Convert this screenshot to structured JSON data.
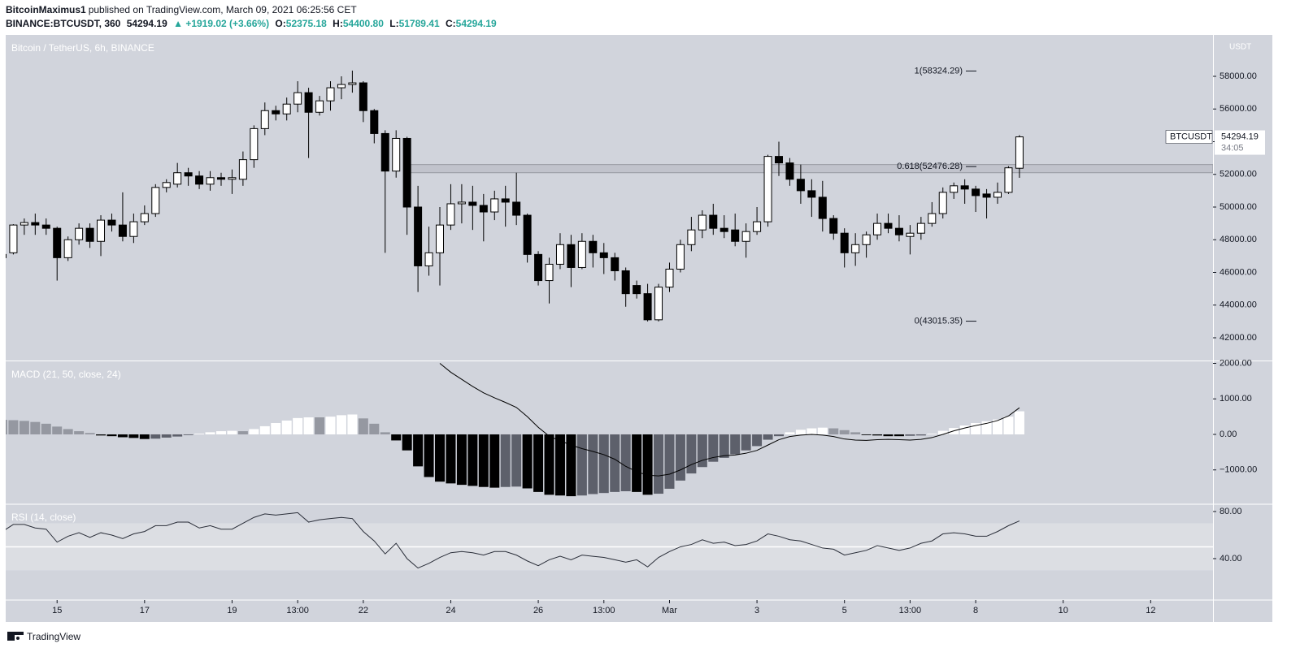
{
  "header": {
    "author": "BitcoinMaximus1",
    "published": "published on TradingView.com, March 09, 2021 06:25:56 CET",
    "symbol": "BINANCE:BTCUSDT, 360",
    "last": "54294.19",
    "change": "▲ +1919.02 (+3.66%)",
    "open_label": "O:",
    "open": "52375.18",
    "high_label": "H:",
    "high": "54400.80",
    "low_label": "L:",
    "low": "51789.41",
    "close_label": "C:",
    "close": "54294.19"
  },
  "footer": "TradingView",
  "chart_data": [
    {
      "type": "candlestick",
      "title": "Bitcoin / TetherUS, 6h, BINANCE",
      "name": "BTCUSDT",
      "axis_unit": "USDT",
      "up_color": "#ffffff",
      "down_color": "#000000",
      "xlim": [
        0.3,
        110.7
      ],
      "xticks": [
        {
          "value": 5,
          "label": "15"
        },
        {
          "value": 13,
          "label": "17"
        },
        {
          "value": 21,
          "label": "19"
        },
        {
          "value": 27,
          "label": "13:00"
        },
        {
          "value": 33,
          "label": "22"
        },
        {
          "value": 41,
          "label": "24"
        },
        {
          "value": 49,
          "label": "26"
        },
        {
          "value": 55,
          "label": "13:00"
        },
        {
          "value": 61,
          "label": "Mar"
        },
        {
          "value": 69,
          "label": "3"
        },
        {
          "value": 77,
          "label": "5"
        },
        {
          "value": 83,
          "label": "13:00"
        },
        {
          "value": 89,
          "label": "8"
        },
        {
          "value": 97,
          "label": "10"
        },
        {
          "value": 105,
          "label": "12"
        }
      ],
      "ylim": [
        40658,
        60534
      ],
      "yticks": [
        {
          "value": 42000,
          "label": "42000.00"
        },
        {
          "value": 44000,
          "label": "44000.00"
        },
        {
          "value": 46000,
          "label": "46000.00"
        },
        {
          "value": 48000,
          "label": "48000.00"
        },
        {
          "value": 50000,
          "label": "50000.00"
        },
        {
          "value": 52000,
          "label": "52000.00"
        },
        {
          "value": 54000,
          "label": "54000.00"
        },
        {
          "value": 56000,
          "label": "56000.00"
        },
        {
          "value": 58000,
          "label": "58000.00"
        }
      ],
      "open": [
        47100,
        47200,
        48900,
        49050,
        48900,
        48700,
        46900,
        48000,
        48700,
        47900,
        49200,
        48900,
        48200,
        49100,
        49600,
        51200,
        51400,
        52100,
        51900,
        51400,
        51800,
        51700,
        51700,
        52900,
        54800,
        55900,
        55700,
        56300,
        57000,
        55800,
        56500,
        57300,
        57500,
        57600,
        55900,
        54500,
        52200,
        54200,
        50000,
        46400,
        47200,
        48900,
        50200,
        50300,
        50100,
        49700,
        50500,
        50300,
        49500,
        47100,
        45500,
        46500,
        47700,
        46300,
        47900,
        47200,
        46900,
        46100,
        45200,
        44700,
        43100,
        45100,
        46200,
        47700,
        48600,
        49500,
        48700,
        48600,
        47900,
        48500,
        49100,
        53100,
        52700,
        51700,
        51000,
        50600,
        49300,
        48400,
        47200,
        47700,
        48300,
        49000,
        48700,
        48200,
        48400,
        49000,
        49600,
        50900,
        51300,
        51100,
        50800,
        50600,
        50900,
        52375.18
      ],
      "high": [
        47300,
        48950,
        49300,
        49600,
        49300,
        48800,
        48200,
        49000,
        49000,
        49500,
        49600,
        50900,
        49600,
        50100,
        51400,
        51700,
        52700,
        52400,
        52200,
        52200,
        52100,
        52300,
        53400,
        55000,
        56400,
        56200,
        56700,
        57700,
        57300,
        56800,
        57700,
        58000,
        58350,
        57700,
        56000,
        54700,
        54700,
        54300,
        51300,
        48800,
        50000,
        51400,
        51400,
        51300,
        50800,
        51000,
        51300,
        52100,
        49600,
        47300,
        46900,
        48400,
        48300,
        48400,
        48300,
        47800,
        47200,
        46300,
        45500,
        45300,
        45300,
        46600,
        48000,
        49400,
        49800,
        50200,
        49500,
        49600,
        49000,
        50000,
        53200,
        54000,
        53000,
        52600,
        51700,
        51600,
        49500,
        48700,
        48400,
        48500,
        49600,
        49600,
        49500,
        48900,
        49400,
        50300,
        51200,
        51500,
        51700,
        51300,
        51100,
        51500,
        52500,
        54400.8
      ],
      "low": [
        46800,
        47100,
        48300,
        48300,
        48300,
        45500,
        46700,
        47700,
        47500,
        47000,
        48500,
        47900,
        47800,
        48900,
        49400,
        50900,
        51200,
        51300,
        51100,
        51000,
        51300,
        50800,
        51300,
        52400,
        54400,
        55300,
        55300,
        55800,
        53000,
        55600,
        55900,
        56600,
        57000,
        55200,
        53900,
        47200,
        51800,
        48300,
        44800,
        45800,
        45200,
        48600,
        49000,
        48600,
        47900,
        49200,
        48800,
        48900,
        46600,
        45200,
        44100,
        46200,
        45100,
        46200,
        46300,
        45900,
        45500,
        43900,
        44400,
        43000,
        43000,
        44800,
        46000,
        47300,
        48100,
        48300,
        48100,
        47600,
        46900,
        48300,
        48800,
        51900,
        51300,
        50200,
        49400,
        48500,
        48000,
        46300,
        46400,
        46900,
        48000,
        48400,
        47900,
        47100,
        48000,
        48800,
        49300,
        50500,
        50200,
        49700,
        49300,
        50200,
        50800,
        51789.41
      ],
      "close": [
        46900,
        48900,
        49050,
        48900,
        48700,
        46900,
        48000,
        48700,
        47900,
        49200,
        48900,
        48200,
        49100,
        49600,
        51200,
        51500,
        52100,
        51900,
        51400,
        51800,
        51700,
        51800,
        52900,
        54800,
        55900,
        55700,
        56300,
        57000,
        55800,
        56500,
        57300,
        57500,
        57600,
        55900,
        54500,
        52200,
        54200,
        50000,
        46400,
        47200,
        48900,
        50200,
        50300,
        50100,
        49700,
        50500,
        50300,
        49500,
        47100,
        45500,
        46500,
        47700,
        46300,
        47900,
        47200,
        46900,
        46100,
        44700,
        44700,
        43100,
        45100,
        46200,
        47700,
        48600,
        49500,
        48700,
        48500,
        47900,
        48500,
        49100,
        53100,
        52700,
        51700,
        51000,
        50600,
        49300,
        48400,
        47200,
        47700,
        48300,
        49000,
        48700,
        48300,
        48400,
        49000,
        49600,
        50900,
        51300,
        51100,
        50700,
        50600,
        50900,
        52400,
        54294.19
      ],
      "zone": {
        "low": 52100,
        "high": 52600,
        "start": 37
      },
      "fib_levels": [
        {
          "value": 58324.29,
          "label": "1(58324.29)"
        },
        {
          "value": 52476.28,
          "label": "0.618(52476.28)"
        },
        {
          "value": 43015.35,
          "label": "0(43015.35)"
        }
      ],
      "last_price": 54294.19,
      "countdown": "34:05"
    },
    {
      "type": "macd",
      "title": "MACD (21, 50, close, 24)",
      "ylim": [
        -1943,
        2034
      ],
      "yticks": [
        {
          "value": -1000,
          "label": "−1000.00"
        },
        {
          "value": 0,
          "label": "0.00"
        },
        {
          "value": 1000,
          "label": "1000.00"
        },
        {
          "value": 2000,
          "label": "2000.00"
        }
      ],
      "histogram_colors": {
        "rising_above_zero": "#ffffff",
        "falling_above_zero": "#9598a1",
        "falling_below_zero": "#000000",
        "rising_below_zero": "#5d606b"
      },
      "line_color": "#000000",
      "histogram": [
        410,
        400,
        380,
        350,
        300,
        220,
        150,
        90,
        40,
        -30,
        -50,
        -80,
        -100,
        -130,
        -120,
        -90,
        -60,
        -20,
        20,
        60,
        90,
        100,
        90,
        150,
        230,
        320,
        390,
        460,
        480,
        480,
        500,
        540,
        560,
        450,
        300,
        60,
        -170,
        -450,
        -900,
        -1200,
        -1330,
        -1380,
        -1420,
        -1450,
        -1480,
        -1500,
        -1480,
        -1470,
        -1520,
        -1620,
        -1700,
        -1720,
        -1740,
        -1720,
        -1680,
        -1650,
        -1620,
        -1600,
        -1620,
        -1700,
        -1670,
        -1530,
        -1300,
        -1100,
        -920,
        -770,
        -660,
        -560,
        -450,
        -330,
        -150,
        -50,
        60,
        130,
        170,
        190,
        170,
        120,
        60,
        -20,
        -30,
        -50,
        -50,
        -40,
        -30,
        20,
        100,
        180,
        250,
        320,
        370,
        420,
        500,
        650
      ],
      "macd": [
        null,
        null,
        null,
        null,
        null,
        null,
        null,
        null,
        null,
        null,
        null,
        null,
        null,
        null,
        null,
        null,
        null,
        null,
        null,
        null,
        null,
        null,
        null,
        null,
        null,
        null,
        null,
        null,
        null,
        null,
        null,
        null,
        null,
        null,
        null,
        null,
        null,
        null,
        null,
        null,
        2000,
        1750,
        1550,
        1350,
        1170,
        1030,
        900,
        760,
        500,
        200,
        -50,
        -180,
        -300,
        -400,
        -480,
        -570,
        -700,
        -900,
        -1050,
        -1150,
        -1170,
        -1120,
        -1000,
        -850,
        -730,
        -650,
        -600,
        -580,
        -530,
        -450,
        -300,
        -150,
        -60,
        -20,
        0,
        -20,
        -60,
        -130,
        -160,
        -170,
        -150,
        -140,
        -150,
        -160,
        -140,
        -90,
        0,
        100,
        180,
        250,
        310,
        390,
        520,
        750
      ]
    },
    {
      "type": "line",
      "title": "RSI (14, close)",
      "color": "#2a2e39",
      "ylim": [
        5.5,
        85.5
      ],
      "yticks": [
        {
          "value": 40,
          "label": "40.00"
        },
        {
          "value": 80,
          "label": "80.00"
        }
      ],
      "band": [
        30,
        70
      ],
      "midline": 50,
      "values": [
        63,
        69,
        69,
        66,
        65,
        54,
        59,
        62,
        58,
        62,
        60,
        57,
        61,
        63,
        68,
        68,
        71,
        71,
        66,
        68,
        65,
        65,
        70,
        75,
        78,
        77,
        78,
        79,
        71,
        73,
        74,
        75,
        74,
        63,
        55,
        44,
        53,
        40,
        32,
        36,
        41,
        45,
        46,
        45,
        43,
        46,
        46,
        43,
        38,
        34,
        39,
        42,
        39,
        43,
        42,
        41,
        39,
        37,
        39,
        33,
        41,
        46,
        50,
        52,
        56,
        53,
        54,
        51,
        52,
        55,
        61,
        59,
        56,
        55,
        52,
        49,
        48,
        43,
        45,
        47,
        51,
        49,
        47,
        49,
        53,
        55,
        61,
        62,
        61,
        59,
        59,
        63,
        68,
        72
      ]
    }
  ]
}
